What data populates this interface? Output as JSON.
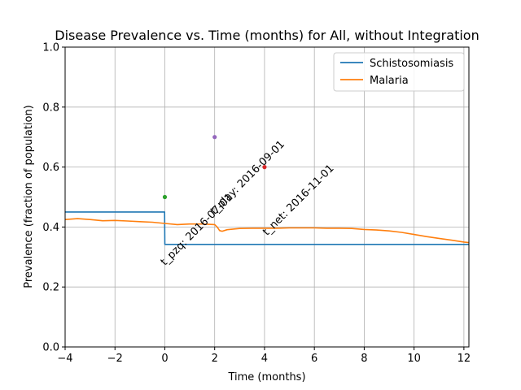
{
  "chart_data": {
    "type": "line",
    "title": "Disease Prevalence vs. Time (months) for All, without Integration",
    "xlabel": "Time (months)",
    "ylabel": "Prevalence (fraction of population)",
    "xlim": [
      -4,
      12.2
    ],
    "ylim": [
      0.0,
      1.0
    ],
    "xticks": [
      -4,
      -2,
      0,
      2,
      4,
      6,
      8,
      10,
      12
    ],
    "xtick_labels": [
      "−4",
      "−2",
      "0",
      "2",
      "4",
      "6",
      "8",
      "10",
      "12"
    ],
    "yticks": [
      0.0,
      0.2,
      0.4,
      0.6,
      0.8,
      1.0
    ],
    "ytick_labels": [
      "0.0",
      "0.2",
      "0.4",
      "0.6",
      "0.8",
      "1.0"
    ],
    "grid": true,
    "legend_position": "top-right",
    "series": [
      {
        "name": "Schistosomiasis",
        "color": "#1f77b4",
        "step": true,
        "x": [
          -4,
          -0.01,
          0,
          12.2
        ],
        "y": [
          0.45,
          0.45,
          0.342,
          0.342
        ]
      },
      {
        "name": "Malaria",
        "color": "#ff7f0e",
        "x": [
          -4,
          -3.5,
          -3,
          -2.5,
          -2,
          -1.5,
          -1,
          -0.5,
          0,
          0.5,
          1,
          1.5,
          2,
          2.1,
          2.2,
          2.3,
          2.5,
          3,
          3.5,
          4,
          4.5,
          5,
          5.5,
          6,
          6.5,
          7,
          7.5,
          8,
          8.5,
          9,
          9.5,
          10,
          10.5,
          11,
          11.5,
          12,
          12.2
        ],
        "y": [
          0.425,
          0.428,
          0.425,
          0.421,
          0.422,
          0.42,
          0.418,
          0.416,
          0.412,
          0.408,
          0.41,
          0.41,
          0.408,
          0.4,
          0.388,
          0.386,
          0.391,
          0.395,
          0.396,
          0.396,
          0.396,
          0.397,
          0.397,
          0.397,
          0.396,
          0.396,
          0.395,
          0.392,
          0.39,
          0.387,
          0.382,
          0.375,
          0.368,
          0.362,
          0.356,
          0.35,
          0.348
        ]
      }
    ],
    "points": [
      {
        "x": 0,
        "y": 0.5,
        "color": "#2ca02c"
      },
      {
        "x": 2.0,
        "y": 0.7,
        "color": "#9467bd"
      },
      {
        "x": 4.0,
        "y": 0.6,
        "color": "#d62728"
      }
    ],
    "annotations": [
      {
        "text": "t_pzq: 2016-07-01",
        "x": 0.0,
        "y": 0.27
      },
      {
        "text": "t_play: 2016-09-01",
        "x": 2.0,
        "y": 0.44
      },
      {
        "text": "t_net: 2016-11-01",
        "x": 4.1,
        "y": 0.37
      }
    ]
  }
}
